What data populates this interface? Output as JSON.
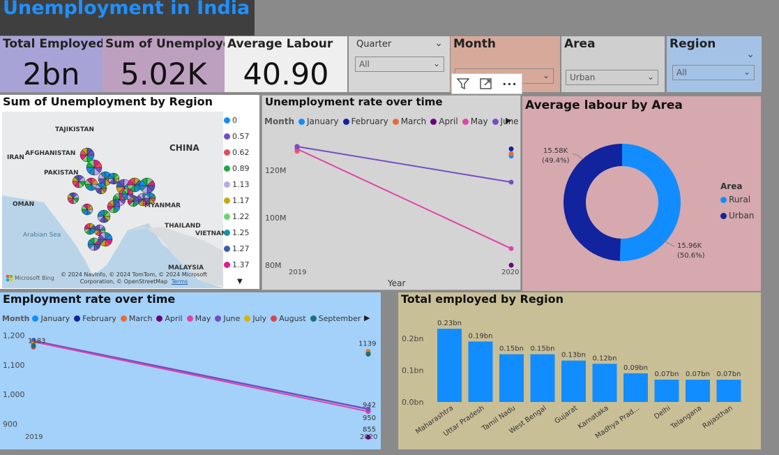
{
  "title": "Unemployment in India",
  "cards": {
    "total_employed": {
      "label": "Total Employed",
      "value": "2bn"
    },
    "sum_unemployed": {
      "label": "Sum of Unemployed",
      "value": "5.02K"
    },
    "average_labour": {
      "label": "Average Labour",
      "value": "40.90"
    }
  },
  "slicers": {
    "quarter": {
      "label": "Quarter",
      "value": "All"
    },
    "month": {
      "label": "Month",
      "value": ""
    },
    "area": {
      "label": "Area",
      "value": "Urban"
    },
    "region": {
      "label": "Region",
      "value": "All"
    }
  },
  "map_panel": {
    "title": "Sum of Unemployment by Region",
    "countries": [
      "TAJIKISTAN",
      "AFGHANISTAN",
      "IRAN",
      "CHINA",
      "PAKISTAN",
      "OMAN",
      "MYANMAR",
      "THAILAND",
      "VIETNAM",
      "MALAYSIA"
    ],
    "sea_label": "Arabian Sea",
    "legend": [
      {
        "label": "0",
        "color": "#118dff"
      },
      {
        "label": "0.57",
        "color": "#744ec2"
      },
      {
        "label": "0.62",
        "color": "#e34a5a"
      },
      {
        "label": "0.89",
        "color": "#1aab40"
      },
      {
        "label": "1.13",
        "color": "#b7a8f0"
      },
      {
        "label": "1.17",
        "color": "#c9a80b"
      },
      {
        "label": "1.22",
        "color": "#6bd56b"
      },
      {
        "label": "1.25",
        "color": "#1b8ea8"
      },
      {
        "label": "1.27",
        "color": "#3c5bb0"
      },
      {
        "label": "1.37",
        "color": "#e6198e"
      }
    ],
    "bing": "Microsoft Bing",
    "copyright": "© 2024 NavInfo, © 2024 TomTom, © 2024 Microsoft Corporation, © OpenStreetMap",
    "terms": "Terms"
  },
  "visual_toolbar": {
    "filter_icon": "filter-icon",
    "focus_icon": "focus-mode-icon",
    "more_icon": "more-options-icon",
    "more_label": "···"
  },
  "months": [
    {
      "name": "January",
      "color": "#118dff"
    },
    {
      "name": "February",
      "color": "#12239e"
    },
    {
      "name": "March",
      "color": "#e66c37"
    },
    {
      "name": "April",
      "color": "#6b007b"
    },
    {
      "name": "May",
      "color": "#e044a7"
    },
    {
      "name": "June",
      "color": "#744ec2"
    },
    {
      "name": "July",
      "color": "#d9b300"
    },
    {
      "name": "August",
      "color": "#d64550"
    },
    {
      "name": "September",
      "color": "#197278"
    }
  ],
  "unemployment_chart": {
    "title": "Unemployment rate over time",
    "legend_title": "Month",
    "xlabel": "Year",
    "y_ticks": [
      "120M",
      "100M",
      "80M"
    ],
    "x_ticks": [
      "2019",
      "2020"
    ],
    "ylim": [
      75,
      135
    ]
  },
  "employment_chart": {
    "title": "Employment rate over time",
    "legend_title": "Month",
    "y_ticks": [
      "1,200",
      "1,100",
      "1,000",
      "900"
    ],
    "x_ticks": [
      "2019",
      "2020"
    ],
    "ylim": [
      830,
      1220
    ],
    "labels": {
      "start": "1183",
      "end_top": "1139",
      "end_942": "942",
      "end_950": "950",
      "end_855": "855"
    }
  },
  "donut": {
    "title": "Average labour by Area",
    "legend_title": "Area",
    "slices": [
      {
        "name": "Rural",
        "value": 15.96,
        "label": "15.96K",
        "pct": "(50.6%)",
        "color": "#118dff"
      },
      {
        "name": "Urban",
        "value": 15.58,
        "label": "15.58K",
        "pct": "(49.4%)",
        "color": "#12239e"
      }
    ]
  },
  "chart_data": [
    {
      "type": "line",
      "title": "Unemployment rate over time",
      "xlabel": "Year",
      "x": [
        "2019",
        "2020"
      ],
      "ylim": [
        75,
        135
      ],
      "series": [
        {
          "name": "January",
          "values": [
            129,
            126
          ]
        },
        {
          "name": "February",
          "values": [
            130,
            129
          ]
        },
        {
          "name": "March",
          "values": [
            128,
            127
          ]
        },
        {
          "name": "April",
          "values": [
            129,
            80
          ]
        },
        {
          "name": "May",
          "values": [
            129,
            87
          ]
        },
        {
          "name": "June",
          "values": [
            130,
            115
          ]
        }
      ]
    },
    {
      "type": "line",
      "title": "Employment rate over time",
      "x": [
        "2019",
        "2020"
      ],
      "ylim": [
        830,
        1220
      ],
      "series": [
        {
          "name": "January",
          "values": [
            1183,
            1139
          ]
        },
        {
          "name": "February",
          "values": [
            1180,
            1139
          ]
        },
        {
          "name": "March",
          "values": [
            1175,
            1145
          ]
        },
        {
          "name": "April",
          "values": [
            1172,
            855
          ]
        },
        {
          "name": "May",
          "values": [
            1178,
            942
          ]
        },
        {
          "name": "June",
          "values": [
            1181,
            950
          ]
        },
        {
          "name": "July",
          "values": [
            1170,
            1140
          ]
        },
        {
          "name": "August",
          "values": [
            1160,
            1138
          ]
        },
        {
          "name": "September",
          "values": [
            1165,
            1136
          ]
        }
      ]
    },
    {
      "type": "pie",
      "title": "Average labour by Area",
      "categories": [
        "Rural",
        "Urban"
      ],
      "values": [
        15.96,
        15.58
      ]
    },
    {
      "type": "bar",
      "title": "Total employed by Region",
      "categories": [
        "Maharashtra",
        "Uttar Pradesh",
        "Tamil Nadu",
        "West Bengal",
        "Gujarat",
        "Karnataka",
        "Madhya Prad...",
        "Delhi",
        "Telangana",
        "Rajasthan"
      ],
      "values": [
        0.23,
        0.19,
        0.15,
        0.15,
        0.13,
        0.12,
        0.09,
        0.07,
        0.07,
        0.07
      ],
      "labels": [
        "0.23bn",
        "0.19bn",
        "0.15bn",
        "0.15bn",
        "0.13bn",
        "0.12bn",
        "0.09bn",
        "0.07bn",
        "0.07bn",
        "0.07bn"
      ],
      "y_ticks": [
        "0.2bn",
        "0.1bn",
        "0.0bn"
      ],
      "ylim": [
        0,
        0.25
      ]
    }
  ]
}
